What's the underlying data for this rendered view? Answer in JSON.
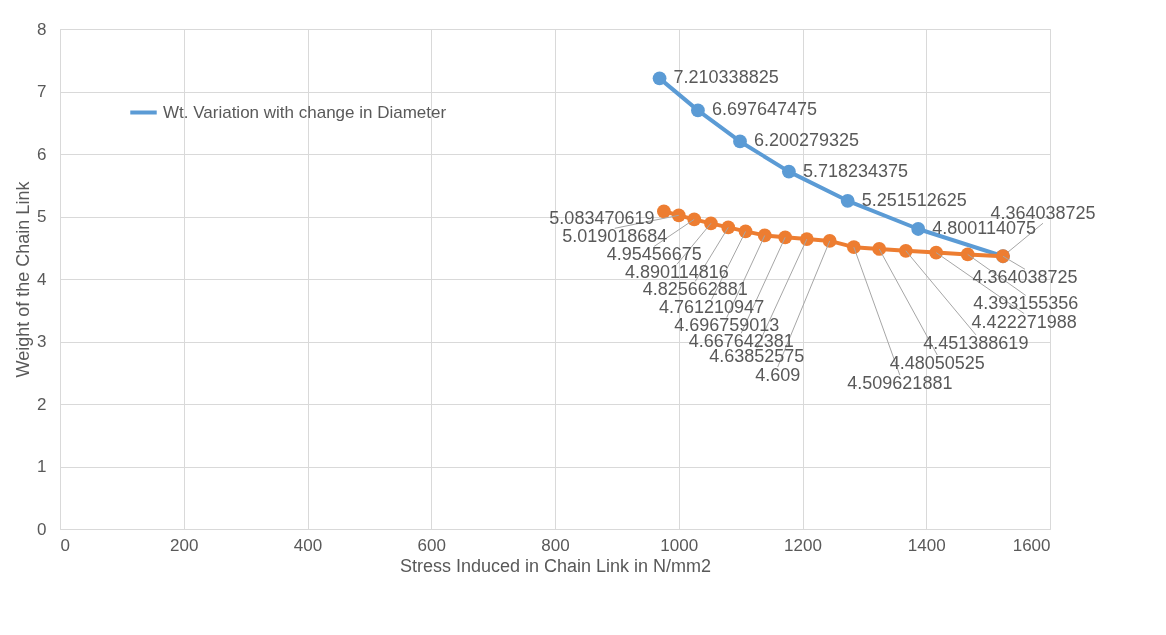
{
  "chart_data": {
    "type": "line",
    "xlabel": "Stress Induced in Chain Link in N/mm2",
    "ylabel": "Weight of the Chain Link",
    "xlim": [
      0,
      1600
    ],
    "xticks": [
      0,
      200,
      400,
      600,
      800,
      1000,
      1200,
      1400,
      1600
    ],
    "ylim": [
      0,
      8
    ],
    "yticks": [
      0,
      1,
      2,
      3,
      4,
      5,
      6,
      7,
      8
    ],
    "grid": true,
    "legend": "top left",
    "marker": "circle",
    "line_style": "solid",
    "series": [
      {
        "name": "Wt. Variation with change in Diameter",
        "color": "#5b9bd5",
        "x": [
          969,
          1031,
          1099,
          1178,
          1273,
          1387,
          1524
        ],
        "values": [
          7.210338825,
          6.697647475,
          6.200279325,
          5.718234375,
          5.251512625,
          4.800114075,
          4.364038725
        ],
        "value_labels": [
          "7.210338825",
          "6.697647475",
          "6.200279325",
          "5.718234375",
          "5.251512625",
          "4.800114075",
          "4.364038725"
        ]
      },
      {
        "color": "#ed7d31",
        "x": [
          976,
          1000,
          1025,
          1052,
          1080,
          1108,
          1139,
          1172,
          1207,
          1244,
          1283,
          1324,
          1367,
          1416,
          1467,
          1524
        ],
        "values": [
          5.083470619,
          5.019018684,
          4.95456675,
          4.890114816,
          4.825662881,
          4.761210947,
          4.696759013,
          4.667642381,
          4.63852575,
          4.609,
          4.509621881,
          4.48050525,
          4.451388619,
          4.422271988,
          4.393155356,
          4.364038725
        ],
        "value_labels": [
          "5.083470619",
          "5.019018684",
          "4.95456675",
          "4.890114816",
          "4.825662881",
          "4.761210947",
          "4.696759013",
          "4.667642381",
          "4.63852575",
          "4.609",
          "4.509621881",
          "4.48050525",
          "4.451388619",
          "4.422271988",
          "4.393155356",
          "4.364038725"
        ]
      }
    ]
  }
}
